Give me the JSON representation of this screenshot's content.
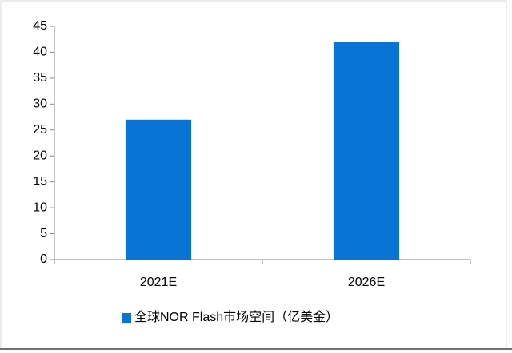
{
  "chart_data": {
    "type": "bar",
    "categories": [
      "2021E",
      "2026E"
    ],
    "series": [
      {
        "name": "全球NOR Flash市场空间（亿美金）",
        "color": "#0a74d6",
        "values": [
          27,
          42
        ]
      }
    ],
    "ylim": [
      0,
      45
    ],
    "yticks": [
      0,
      5,
      10,
      15,
      20,
      25,
      30,
      35,
      40,
      45
    ],
    "grid": false,
    "legend": "bottom"
  }
}
